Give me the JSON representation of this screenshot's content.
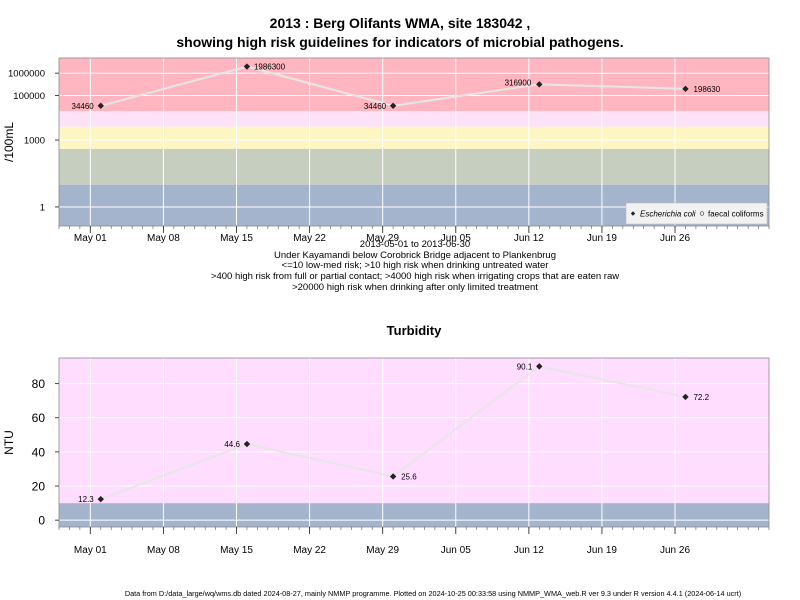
{
  "title": {
    "line1": "2013 : Berg Olifants WMA, site 183042 ,",
    "line2": "showing high risk guidelines for indicators of microbial pathogens."
  },
  "caption": {
    "line1": "2013-05-01 to 2013-06-30",
    "line2": "Under Kayamandi below Corobrick Bridge adjacent to Plankenbrug",
    "line3": "<=10 low-med risk; >10 high risk when drinking untreated water",
    "line4": ">400 high risk from full or partial contact; >4000 high risk when irrigating crops that are eaten raw",
    "line5": ">20000 high risk when drinking after only limited treatment"
  },
  "footer": "Data from D:/data_large/wq/wms.db dated 2024-08-27, mainly NMMP programme. Plotted on 2024-10-25 00:33:58 using NMMP_WMA_web.R ver 9.3 under R version 4.4.1 (2024-06-14 ucrt)",
  "colors": {
    "band_blue": "#a3b4cc",
    "band_gray": "#c6cfbf",
    "band_yellow": "#fdf6c2",
    "band_pink_light": "#fde1f7",
    "band_red": "#ffb6c1",
    "plot_pink": "#ffddff",
    "grid": "#ffffff",
    "line": "#e6e6e6",
    "marker": "#222222"
  },
  "chart_data": [
    {
      "type": "line",
      "title": "",
      "xlabel": "",
      "ylabel": "/100mL",
      "yscale": "log10",
      "ylim": [
        0.14,
        4800000
      ],
      "xlim": [
        "2013-04-28",
        "2013-07-05"
      ],
      "x_ticks": [
        "May 01",
        "May 08",
        "May 15",
        "May 22",
        "May 29",
        "Jun 05",
        "Jun 12",
        "Jun 19",
        "Jun 26"
      ],
      "y_ticks": [
        {
          "value": 1,
          "label": "1"
        },
        {
          "value": 1000,
          "label": "1000"
        },
        {
          "value": 100000,
          "label": "100000"
        },
        {
          "value": 1000000,
          "label": "1000000"
        }
      ],
      "bands": [
        {
          "from": 0.14,
          "to": 10,
          "color": "#a3b4cc"
        },
        {
          "from": 10,
          "to": 400,
          "color": "#c6cfbf"
        },
        {
          "from": 400,
          "to": 4000,
          "color": "#fdf6c2"
        },
        {
          "from": 4000,
          "to": 20000,
          "color": "#fde1f7"
        },
        {
          "from": 20000,
          "to": 4800000,
          "color": "#ffb6c1"
        }
      ],
      "series": [
        {
          "name": "Escherichia coli",
          "x": [
            "2013-05-02",
            "2013-05-16",
            "2013-05-30",
            "2013-06-13",
            "2013-06-27"
          ],
          "y": [
            34460,
            1986300,
            34460,
            316900,
            198630
          ],
          "labels": [
            "34460",
            "1986300",
            "34460",
            "316900",
            "198630"
          ]
        },
        {
          "name": "faecal coliforms",
          "x": [],
          "y": []
        }
      ],
      "legend": {
        "position": "bottom-right",
        "entries": [
          "Escherichia coli",
          "faecal coliforms"
        ]
      },
      "grid": true
    },
    {
      "type": "line",
      "title": "Turbidity",
      "xlabel": "",
      "ylabel": "NTU",
      "yscale": "linear",
      "ylim": [
        -4,
        95
      ],
      "xlim": [
        "2013-04-28",
        "2013-07-05"
      ],
      "x_ticks": [
        "May 01",
        "May 08",
        "May 15",
        "May 22",
        "May 29",
        "Jun 05",
        "Jun 12",
        "Jun 19",
        "Jun 26"
      ],
      "y_ticks": [
        {
          "value": 0,
          "label": "0"
        },
        {
          "value": 20,
          "label": "20"
        },
        {
          "value": 40,
          "label": "40"
        },
        {
          "value": 60,
          "label": "60"
        },
        {
          "value": 80,
          "label": "80"
        }
      ],
      "bands": [
        {
          "from": -4,
          "to": 10,
          "color": "#a3b4cc"
        },
        {
          "from": 10,
          "to": 95,
          "color": "#ffddff"
        }
      ],
      "series": [
        {
          "name": "",
          "x": [
            "2013-05-02",
            "2013-05-16",
            "2013-05-30",
            "2013-06-13",
            "2013-06-27"
          ],
          "y": [
            12.3,
            44.6,
            25.6,
            90.1,
            72.2
          ],
          "labels": [
            "12.3",
            "44.6",
            "25.6",
            "90.1",
            "72.2"
          ]
        }
      ],
      "grid": true
    }
  ]
}
